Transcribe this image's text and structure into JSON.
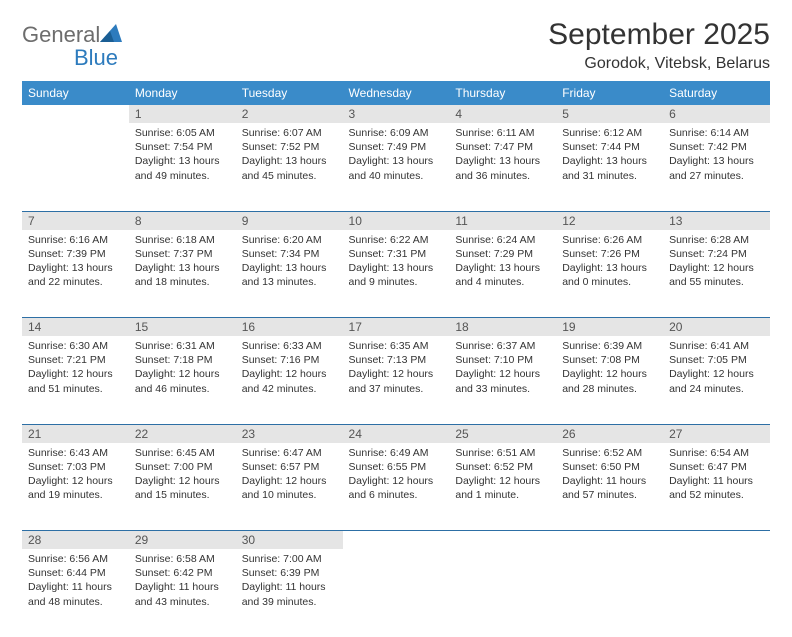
{
  "logo": {
    "word1": "General",
    "word2": "Blue"
  },
  "title": "September 2025",
  "location": "Gorodok, Vitebsk, Belarus",
  "colors": {
    "header_bg": "#3a8bc9",
    "header_text": "#ffffff",
    "daynum_bg": "#e5e5e5",
    "daynum_text": "#555555",
    "cell_text": "#333333",
    "rule": "#2d6fa5",
    "logo_gray": "#6d6d6d",
    "logo_blue": "#2d7bbd"
  },
  "weekdays": [
    "Sunday",
    "Monday",
    "Tuesday",
    "Wednesday",
    "Thursday",
    "Friday",
    "Saturday"
  ],
  "weeks": [
    {
      "nums": [
        "",
        "1",
        "2",
        "3",
        "4",
        "5",
        "6"
      ],
      "cells": [
        null,
        {
          "sunrise": "Sunrise: 6:05 AM",
          "sunset": "Sunset: 7:54 PM",
          "day1": "Daylight: 13 hours",
          "day2": "and 49 minutes."
        },
        {
          "sunrise": "Sunrise: 6:07 AM",
          "sunset": "Sunset: 7:52 PM",
          "day1": "Daylight: 13 hours",
          "day2": "and 45 minutes."
        },
        {
          "sunrise": "Sunrise: 6:09 AM",
          "sunset": "Sunset: 7:49 PM",
          "day1": "Daylight: 13 hours",
          "day2": "and 40 minutes."
        },
        {
          "sunrise": "Sunrise: 6:11 AM",
          "sunset": "Sunset: 7:47 PM",
          "day1": "Daylight: 13 hours",
          "day2": "and 36 minutes."
        },
        {
          "sunrise": "Sunrise: 6:12 AM",
          "sunset": "Sunset: 7:44 PM",
          "day1": "Daylight: 13 hours",
          "day2": "and 31 minutes."
        },
        {
          "sunrise": "Sunrise: 6:14 AM",
          "sunset": "Sunset: 7:42 PM",
          "day1": "Daylight: 13 hours",
          "day2": "and 27 minutes."
        }
      ]
    },
    {
      "nums": [
        "7",
        "8",
        "9",
        "10",
        "11",
        "12",
        "13"
      ],
      "cells": [
        {
          "sunrise": "Sunrise: 6:16 AM",
          "sunset": "Sunset: 7:39 PM",
          "day1": "Daylight: 13 hours",
          "day2": "and 22 minutes."
        },
        {
          "sunrise": "Sunrise: 6:18 AM",
          "sunset": "Sunset: 7:37 PM",
          "day1": "Daylight: 13 hours",
          "day2": "and 18 minutes."
        },
        {
          "sunrise": "Sunrise: 6:20 AM",
          "sunset": "Sunset: 7:34 PM",
          "day1": "Daylight: 13 hours",
          "day2": "and 13 minutes."
        },
        {
          "sunrise": "Sunrise: 6:22 AM",
          "sunset": "Sunset: 7:31 PM",
          "day1": "Daylight: 13 hours",
          "day2": "and 9 minutes."
        },
        {
          "sunrise": "Sunrise: 6:24 AM",
          "sunset": "Sunset: 7:29 PM",
          "day1": "Daylight: 13 hours",
          "day2": "and 4 minutes."
        },
        {
          "sunrise": "Sunrise: 6:26 AM",
          "sunset": "Sunset: 7:26 PM",
          "day1": "Daylight: 13 hours",
          "day2": "and 0 minutes."
        },
        {
          "sunrise": "Sunrise: 6:28 AM",
          "sunset": "Sunset: 7:24 PM",
          "day1": "Daylight: 12 hours",
          "day2": "and 55 minutes."
        }
      ]
    },
    {
      "nums": [
        "14",
        "15",
        "16",
        "17",
        "18",
        "19",
        "20"
      ],
      "cells": [
        {
          "sunrise": "Sunrise: 6:30 AM",
          "sunset": "Sunset: 7:21 PM",
          "day1": "Daylight: 12 hours",
          "day2": "and 51 minutes."
        },
        {
          "sunrise": "Sunrise: 6:31 AM",
          "sunset": "Sunset: 7:18 PM",
          "day1": "Daylight: 12 hours",
          "day2": "and 46 minutes."
        },
        {
          "sunrise": "Sunrise: 6:33 AM",
          "sunset": "Sunset: 7:16 PM",
          "day1": "Daylight: 12 hours",
          "day2": "and 42 minutes."
        },
        {
          "sunrise": "Sunrise: 6:35 AM",
          "sunset": "Sunset: 7:13 PM",
          "day1": "Daylight: 12 hours",
          "day2": "and 37 minutes."
        },
        {
          "sunrise": "Sunrise: 6:37 AM",
          "sunset": "Sunset: 7:10 PM",
          "day1": "Daylight: 12 hours",
          "day2": "and 33 minutes."
        },
        {
          "sunrise": "Sunrise: 6:39 AM",
          "sunset": "Sunset: 7:08 PM",
          "day1": "Daylight: 12 hours",
          "day2": "and 28 minutes."
        },
        {
          "sunrise": "Sunrise: 6:41 AM",
          "sunset": "Sunset: 7:05 PM",
          "day1": "Daylight: 12 hours",
          "day2": "and 24 minutes."
        }
      ]
    },
    {
      "nums": [
        "21",
        "22",
        "23",
        "24",
        "25",
        "26",
        "27"
      ],
      "cells": [
        {
          "sunrise": "Sunrise: 6:43 AM",
          "sunset": "Sunset: 7:03 PM",
          "day1": "Daylight: 12 hours",
          "day2": "and 19 minutes."
        },
        {
          "sunrise": "Sunrise: 6:45 AM",
          "sunset": "Sunset: 7:00 PM",
          "day1": "Daylight: 12 hours",
          "day2": "and 15 minutes."
        },
        {
          "sunrise": "Sunrise: 6:47 AM",
          "sunset": "Sunset: 6:57 PM",
          "day1": "Daylight: 12 hours",
          "day2": "and 10 minutes."
        },
        {
          "sunrise": "Sunrise: 6:49 AM",
          "sunset": "Sunset: 6:55 PM",
          "day1": "Daylight: 12 hours",
          "day2": "and 6 minutes."
        },
        {
          "sunrise": "Sunrise: 6:51 AM",
          "sunset": "Sunset: 6:52 PM",
          "day1": "Daylight: 12 hours",
          "day2": "and 1 minute."
        },
        {
          "sunrise": "Sunrise: 6:52 AM",
          "sunset": "Sunset: 6:50 PM",
          "day1": "Daylight: 11 hours",
          "day2": "and 57 minutes."
        },
        {
          "sunrise": "Sunrise: 6:54 AM",
          "sunset": "Sunset: 6:47 PM",
          "day1": "Daylight: 11 hours",
          "day2": "and 52 minutes."
        }
      ]
    },
    {
      "nums": [
        "28",
        "29",
        "30",
        "",
        "",
        "",
        ""
      ],
      "cells": [
        {
          "sunrise": "Sunrise: 6:56 AM",
          "sunset": "Sunset: 6:44 PM",
          "day1": "Daylight: 11 hours",
          "day2": "and 48 minutes."
        },
        {
          "sunrise": "Sunrise: 6:58 AM",
          "sunset": "Sunset: 6:42 PM",
          "day1": "Daylight: 11 hours",
          "day2": "and 43 minutes."
        },
        {
          "sunrise": "Sunrise: 7:00 AM",
          "sunset": "Sunset: 6:39 PM",
          "day1": "Daylight: 11 hours",
          "day2": "and 39 minutes."
        },
        null,
        null,
        null,
        null
      ]
    }
  ]
}
